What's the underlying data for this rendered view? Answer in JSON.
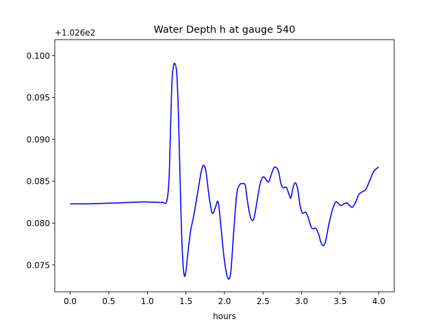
{
  "chart_data": {
    "type": "line",
    "title": "Water Depth h at gauge 540",
    "xlabel": "hours",
    "ylabel": "",
    "y_offset_label": "+1.026e2",
    "y_offset": 102.6,
    "xlim": [
      -0.2,
      4.2
    ],
    "ylim": [
      0.0718,
      0.1019
    ],
    "x_ticks": [
      0.0,
      0.5,
      1.0,
      1.5,
      2.0,
      2.5,
      3.0,
      3.5,
      4.0
    ],
    "x_tick_labels": [
      "0.0",
      "0.5",
      "1.0",
      "1.5",
      "2.0",
      "2.5",
      "3.0",
      "3.5",
      "4.0"
    ],
    "y_ticks": [
      0.075,
      0.08,
      0.085,
      0.09,
      0.095,
      0.1
    ],
    "y_tick_labels": [
      "0.075",
      "0.080",
      "0.085",
      "0.090",
      "0.095",
      "0.100"
    ],
    "grid": false,
    "line_color": "#0000ff",
    "series": [
      {
        "x": [
          0.0,
          0.2,
          0.4,
          0.6,
          0.8,
          0.95,
          1.05,
          1.15,
          1.2,
          1.25,
          1.28,
          1.3,
          1.32,
          1.34,
          1.36,
          1.38,
          1.4,
          1.42,
          1.44,
          1.46,
          1.48,
          1.5,
          1.52,
          1.56,
          1.6,
          1.65,
          1.7,
          1.73,
          1.76,
          1.8,
          1.84,
          1.88,
          1.91,
          1.93,
          1.96,
          2.0,
          2.04,
          2.08,
          2.12,
          2.16,
          2.2,
          2.23,
          2.27,
          2.3,
          2.34,
          2.38,
          2.42,
          2.46,
          2.5,
          2.54,
          2.57,
          2.6,
          2.63,
          2.66,
          2.7,
          2.73,
          2.76,
          2.8,
          2.83,
          2.86,
          2.89,
          2.92,
          2.95,
          2.98,
          3.01,
          3.05,
          3.08,
          3.12,
          3.15,
          3.18,
          3.22,
          3.25,
          3.28,
          3.31,
          3.35,
          3.4,
          3.44,
          3.47,
          3.51,
          3.55,
          3.59,
          3.62,
          3.66,
          3.7,
          3.74,
          3.78,
          3.83,
          3.88,
          3.93,
          3.97,
          4.0
        ],
        "y": [
          0.0823,
          0.0823,
          0.08235,
          0.0824,
          0.08248,
          0.08252,
          0.0825,
          0.08247,
          0.08247,
          0.08255,
          0.085,
          0.091,
          0.097,
          0.0988,
          0.099,
          0.098,
          0.094,
          0.087,
          0.08,
          0.0755,
          0.0737,
          0.0742,
          0.076,
          0.079,
          0.0808,
          0.0835,
          0.0862,
          0.0869,
          0.0862,
          0.0832,
          0.0812,
          0.0818,
          0.0826,
          0.0818,
          0.079,
          0.0755,
          0.0735,
          0.074,
          0.079,
          0.0835,
          0.0846,
          0.0847,
          0.0845,
          0.0825,
          0.0806,
          0.0805,
          0.0825,
          0.0846,
          0.0855,
          0.0852,
          0.0849,
          0.0856,
          0.0864,
          0.0867,
          0.0862,
          0.0848,
          0.0842,
          0.0843,
          0.0836,
          0.083,
          0.0843,
          0.0848,
          0.084,
          0.0821,
          0.0812,
          0.0813,
          0.0808,
          0.0796,
          0.0793,
          0.0794,
          0.0787,
          0.0777,
          0.0773,
          0.0778,
          0.0797,
          0.0816,
          0.0825,
          0.0824,
          0.0821,
          0.0823,
          0.0824,
          0.0821,
          0.0819,
          0.0825,
          0.0834,
          0.0837,
          0.084,
          0.085,
          0.0861,
          0.0865,
          0.0867
        ]
      }
    ]
  }
}
